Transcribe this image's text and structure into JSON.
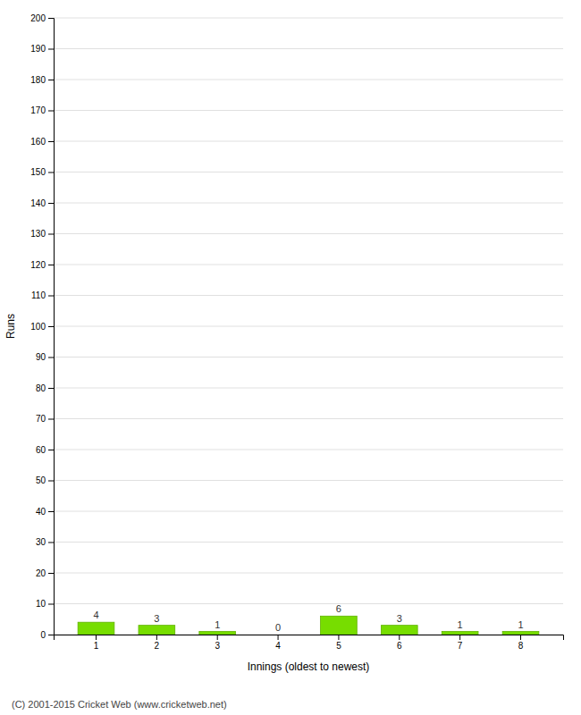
{
  "chart_data": {
    "type": "bar",
    "xlabel": "Innings (oldest to newest)",
    "ylabel": "Runs",
    "categories": [
      1,
      2,
      3,
      4,
      5,
      6,
      7,
      8
    ],
    "values": [
      4,
      3,
      1,
      0,
      6,
      3,
      1,
      1
    ],
    "color": "#77dd00",
    "ylim": [
      0,
      200
    ],
    "yticks": [
      0,
      10,
      20,
      30,
      40,
      50,
      60,
      70,
      80,
      90,
      100,
      110,
      120,
      130,
      140,
      150,
      160,
      170,
      180,
      190,
      200
    ],
    "grid": true,
    "data_labels": true,
    "annotations": [
      "(C) 2001-2015 Cricket Web (www.cricketweb.net)"
    ]
  }
}
